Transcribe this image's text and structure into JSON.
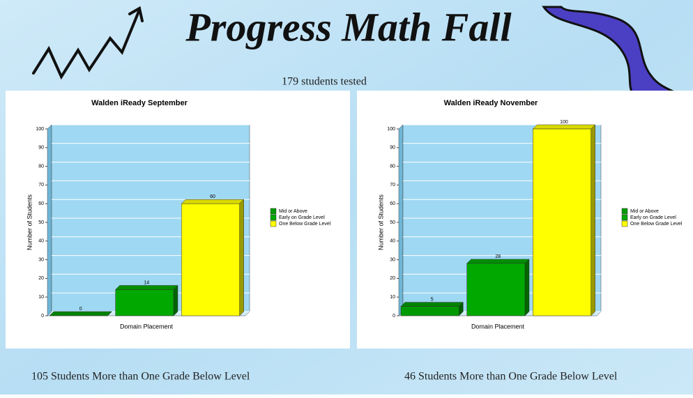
{
  "slide": {
    "title": "Progress Math Fall",
    "subtitle": "179 students tested",
    "footer_left": "105 Students More than One Grade Below Level",
    "footer_right": "46  Students More than One Grade Below Level"
  },
  "chart_data": [
    {
      "type": "bar3d",
      "title": "Walden iReady September",
      "y_label": "Number of Students",
      "x_label": "Domain Placement",
      "ylim": [
        0,
        100
      ],
      "yticks": [
        0,
        10,
        20,
        30,
        40,
        50,
        60,
        70,
        80,
        90,
        100
      ],
      "grid": true,
      "legend": "right",
      "series": [
        {
          "name": "Mid or Above",
          "color": "#009a00",
          "values": [
            0
          ]
        },
        {
          "name": "Early on Grade Level",
          "color": "#00a800",
          "values": [
            14
          ]
        },
        {
          "name": "One Below Grade Level",
          "color": "#ffff00",
          "values": [
            60
          ]
        }
      ]
    },
    {
      "type": "bar3d",
      "title": "Walden iReady November",
      "y_label": "Number of Students",
      "x_label": "Domain Placement",
      "ylim": [
        0,
        100
      ],
      "yticks": [
        0,
        10,
        20,
        30,
        40,
        50,
        60,
        70,
        80,
        90,
        100
      ],
      "grid": true,
      "legend": "right",
      "series": [
        {
          "name": "Mid or Above",
          "color": "#009a00",
          "values": [
            5
          ]
        },
        {
          "name": "Early on Grade Level",
          "color": "#00a800",
          "values": [
            28
          ]
        },
        {
          "name": "One Below Grade Level",
          "color": "#ffff00",
          "values": [
            100
          ]
        }
      ]
    }
  ]
}
